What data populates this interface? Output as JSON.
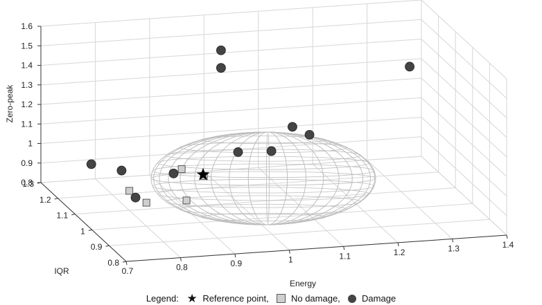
{
  "chart_data": {
    "type": "scatter",
    "subtype": "3d-scatter-with-ellipsoid",
    "xlabel": "Energy",
    "ylabel": "IQR",
    "zlabel": "Zero-peak",
    "xticks": [
      "0.7",
      "0.8",
      "0.9",
      "1",
      "1.1",
      "1.2",
      "1.3",
      "1.4"
    ],
    "yticks": [
      "0.8",
      "0.9",
      "1",
      "1.1",
      "1.2",
      "1.3"
    ],
    "zticks": [
      "0.8",
      "0.9",
      "1",
      "1.1",
      "1.2",
      "1.3",
      "1.4",
      "1.5",
      "1.6"
    ],
    "xlim": [
      0.7,
      1.4
    ],
    "ylim": [
      0.8,
      1.3
    ],
    "zlim": [
      0.8,
      1.6
    ],
    "grid": true,
    "legend": {
      "prefix": "Legend:",
      "entries": [
        {
          "symbol": "star",
          "label": "Reference point,"
        },
        {
          "symbol": "square",
          "label": "No damage,"
        },
        {
          "symbol": "circle",
          "label": "Damage"
        }
      ],
      "placement": "bottom"
    },
    "colors": {
      "reference": "#000000",
      "no_damage_fill": "#cfcfcf",
      "damage_fill": "#444444",
      "ellipsoid": "#bdbdbd"
    },
    "reference_point": {
      "energy": 0.92,
      "iqr": 1.05,
      "zero_peak": 1.0
    },
    "series": [
      {
        "name": "No damage",
        "points": [
          {
            "energy": 0.89,
            "iqr": 0.95,
            "zero_peak": 1.08
          },
          {
            "energy": 0.89,
            "iqr": 1.08,
            "zero_peak": 1.01
          },
          {
            "energy": 0.88,
            "iqr": 1.02,
            "zero_peak": 0.9
          },
          {
            "energy": 0.8,
            "iqr": 1.1,
            "zero_peak": 0.9
          },
          {
            "energy": 0.8,
            "iqr": 1.0,
            "zero_peak": 0.92
          }
        ]
      },
      {
        "name": "Damage",
        "points": [
          {
            "energy": 1.0,
            "iqr": 1.2,
            "zero_peak": 1.5
          },
          {
            "energy": 1.0,
            "iqr": 1.2,
            "zero_peak": 1.41
          },
          {
            "energy": 1.3,
            "iqr": 1.05,
            "zero_peak": 1.48
          },
          {
            "energy": 1.1,
            "iqr": 1.0,
            "zero_peak": 1.21
          },
          {
            "energy": 1.1,
            "iqr": 1.1,
            "zero_peak": 1.17
          },
          {
            "energy": 1.03,
            "iqr": 1.0,
            "zero_peak": 1.14
          },
          {
            "energy": 1.0,
            "iqr": 1.1,
            "zero_peak": 1.06
          },
          {
            "energy": 0.85,
            "iqr": 1.0,
            "zero_peak": 1.06
          },
          {
            "energy": 0.73,
            "iqr": 1.1,
            "zero_peak": 1.05
          },
          {
            "energy": 0.77,
            "iqr": 1.05,
            "zero_peak": 1.05
          },
          {
            "energy": 0.78,
            "iqr": 1.0,
            "zero_peak": 0.95
          }
        ]
      }
    ]
  }
}
